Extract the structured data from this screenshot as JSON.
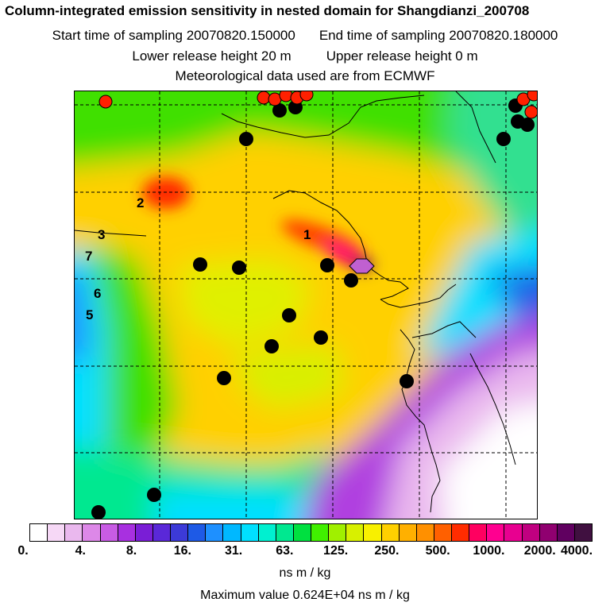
{
  "title": "Column-integrated emission sensitivity in nested domain for Shangdianzi_200708",
  "start_time": "Start time of sampling 20070820.150000",
  "end_time": "End time of sampling 20070820.180000",
  "lower_release": "Lower release height   20 m",
  "upper_release": "Upper release height    0 m",
  "met_data": "Meteorological data used are from ECMWF",
  "map_labels": [
    "1",
    "2",
    "3",
    "7",
    "6",
    "5"
  ],
  "colorbar": {
    "colors": [
      "#ffffff",
      "#f6d8f6",
      "#eab8ee",
      "#dd88e8",
      "#c85ce4",
      "#a830e0",
      "#7a1ed6",
      "#5a28d8",
      "#3c3ad8",
      "#1e5ae6",
      "#1e90ff",
      "#00b8ff",
      "#00e0ff",
      "#00f0d0",
      "#00e890",
      "#00e040",
      "#40f000",
      "#a0f000",
      "#d8f000",
      "#f8f000",
      "#ffd000",
      "#ffb000",
      "#ff9000",
      "#ff6000",
      "#ff2c00",
      "#ff0060",
      "#ff0090",
      "#e80090",
      "#c00080",
      "#900070",
      "#600060",
      "#401040"
    ],
    "tick_labels": [
      "0.",
      "4.",
      "8.",
      "16.",
      "31.",
      "63.",
      "125.",
      "250.",
      "500.",
      "1000.",
      "2000.",
      "4000."
    ]
  },
  "unit": "ns m / kg",
  "max_value": "Maximum value  0.624E+04 ns m / kg"
}
